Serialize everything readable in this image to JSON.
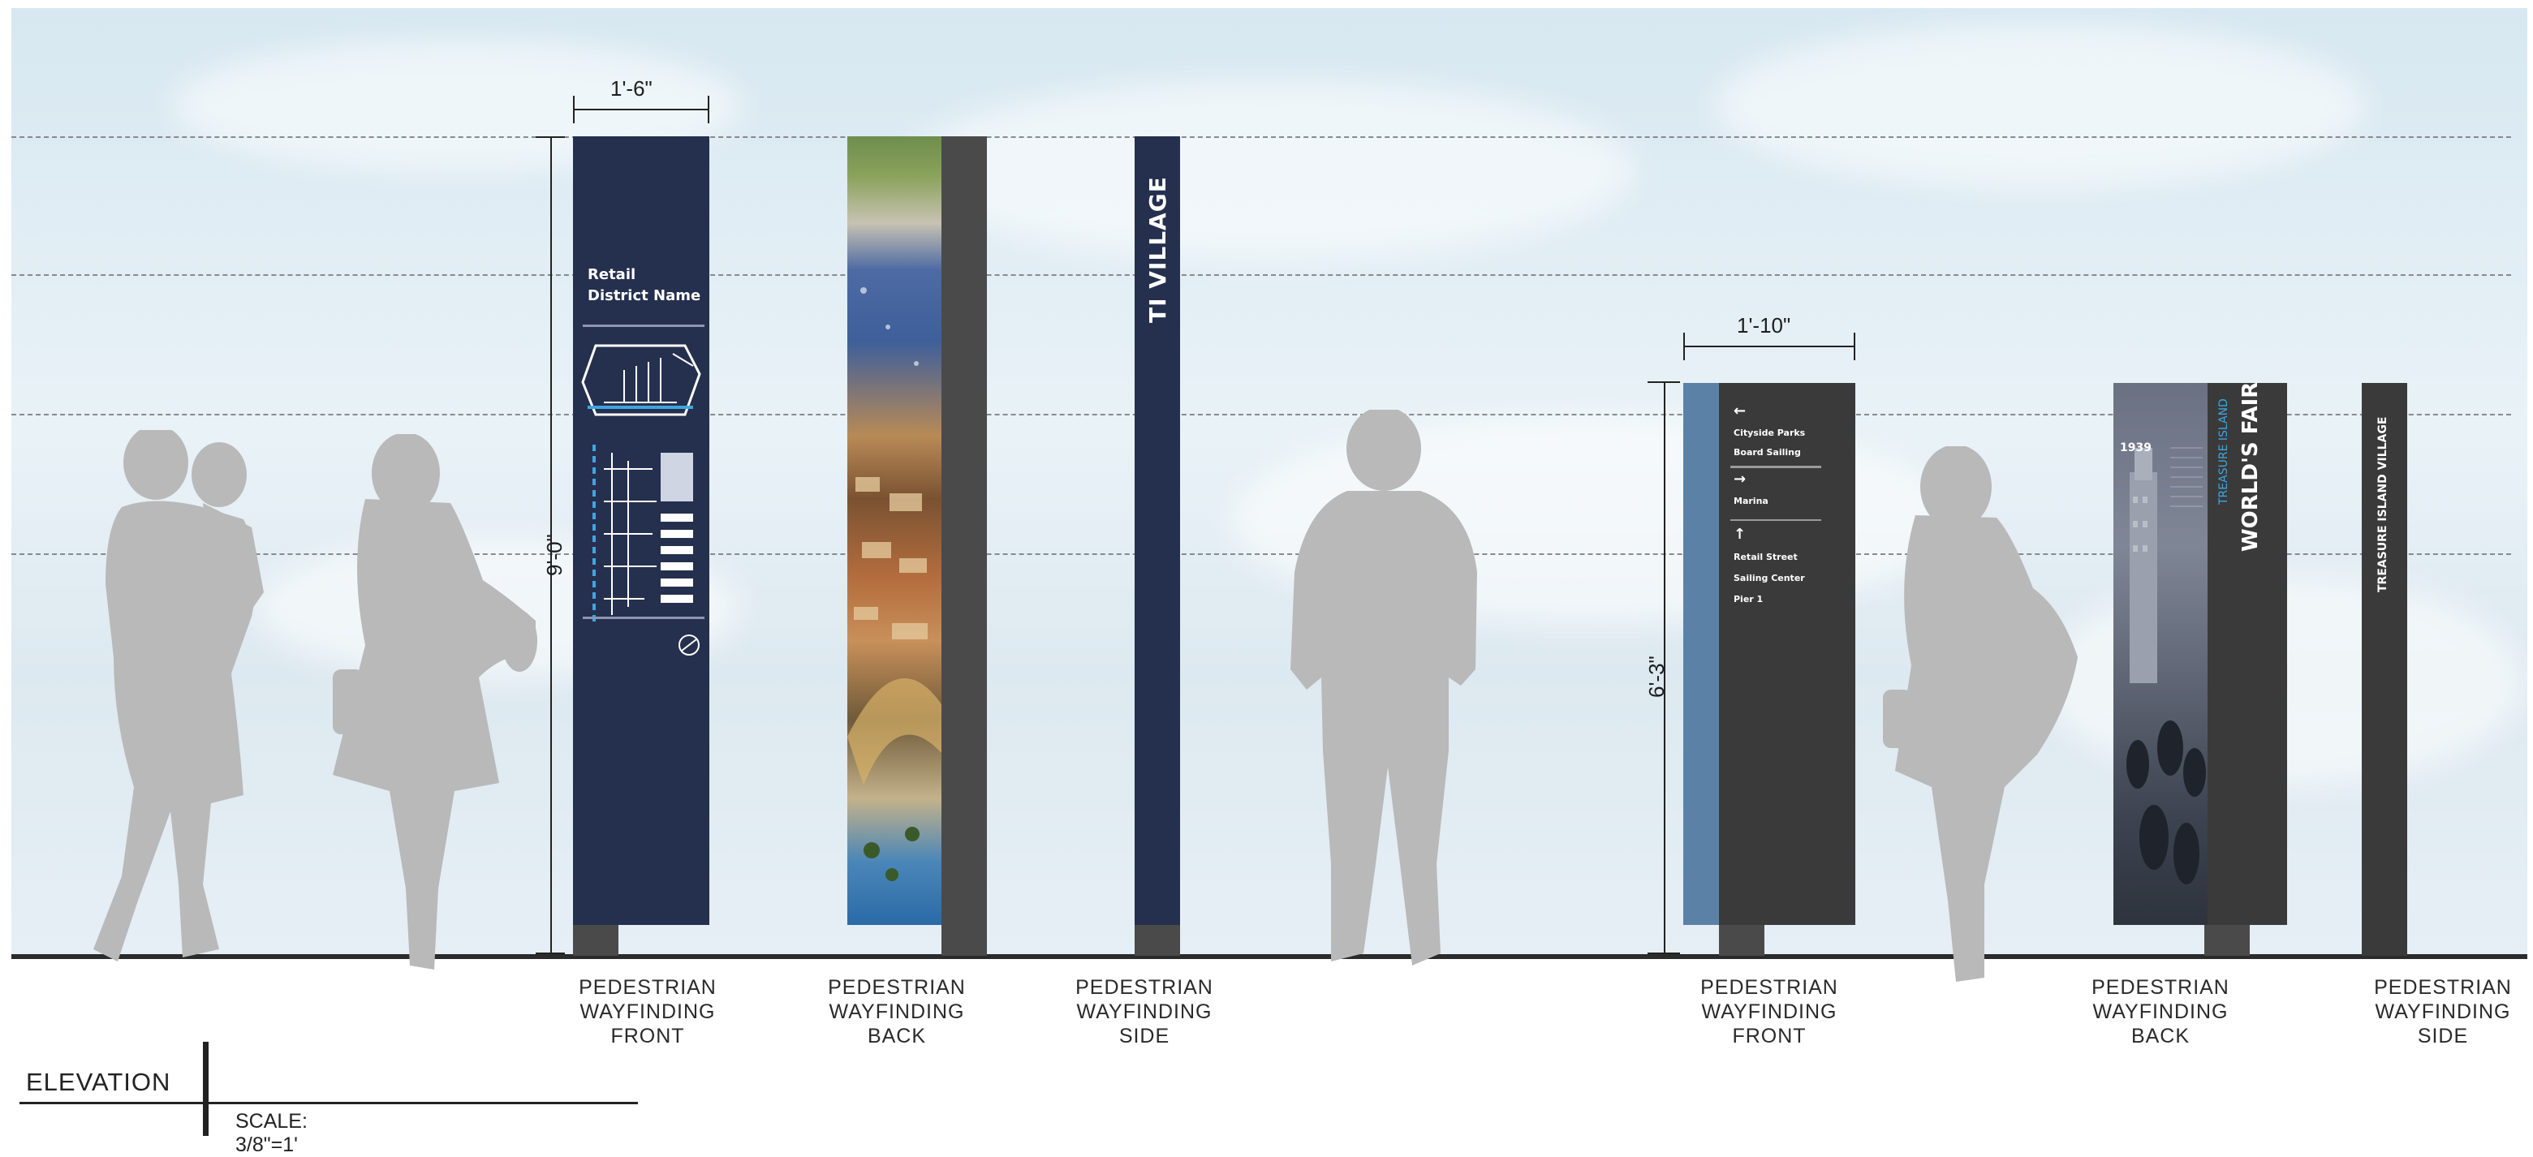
{
  "dimensions": {
    "large_sign_width": "1'-6\"",
    "large_sign_height": "9'-0\"",
    "small_sign_width": "1'-10\"",
    "small_sign_height": "6'-3\""
  },
  "large_front_sign": {
    "district_line1": "Retail",
    "district_line2": "District Name"
  },
  "large_side_sign": {
    "text": "TI VILLAGE"
  },
  "small_front_sign": {
    "group1_arrow": "←",
    "group1_line1": "Cityside Parks",
    "group1_line2": "Board Sailing",
    "group2_arrow": "→",
    "group2_line1": "Marina",
    "group3_arrow": "↑",
    "group3_line1": "Retail Street",
    "group3_line2": "Sailing Center",
    "group3_line3": "Pier 1"
  },
  "small_back_sign": {
    "year": "1939",
    "kicker": "TREASURE ISLAND",
    "title": "WORLD'S FAIR"
  },
  "small_side_sign": {
    "text": "TREASURE ISLAND VILLAGE"
  },
  "captions": {
    "large_front": "PEDESTRIAN\nWAYFINDING\nFRONT",
    "large_back": "PEDESTRIAN\nWAYFINDING\nBACK",
    "large_side": "PEDESTRIAN\nWAYFINDING\nSIDE",
    "small_front": "PEDESTRIAN\nWAYFINDING\nFRONT",
    "small_back": "PEDESTRIAN\nWAYFINDING\nBACK",
    "small_side": "PEDESTRIAN\nWAYFINDING\nSIDE"
  },
  "legend": {
    "title": "ELEVATION",
    "scale": "SCALE: 3/8\"=1'"
  },
  "colors": {
    "navy": "#25304e",
    "charcoal": "#3a3a3a",
    "steel_blue": "#5b82a6",
    "silhouette": "#b9b9b9",
    "accent_blue": "#3ea6e0"
  },
  "icons": [
    "no-smoking-icon",
    "arrow-left-icon",
    "arrow-right-icon",
    "arrow-up-icon",
    "map-icon"
  ]
}
